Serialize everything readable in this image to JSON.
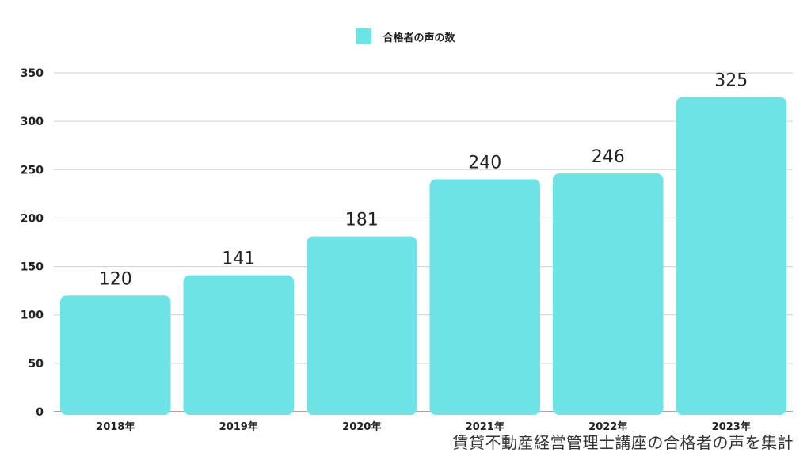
{
  "chart_data": {
    "type": "bar",
    "categories": [
      "2018年",
      "2019年",
      "2020年",
      "2021年",
      "2022年",
      "2023年"
    ],
    "series": [
      {
        "name": "合格者の声の数",
        "values": [
          120,
          141,
          181,
          240,
          246,
          325
        ]
      }
    ],
    "data_labels": [
      "120",
      "141",
      "181",
      "240",
      "246",
      "325"
    ],
    "ylim": [
      0,
      350
    ],
    "yticks": [
      0,
      50,
      100,
      150,
      200,
      250,
      300,
      350
    ],
    "grid": true,
    "legend": "top-center",
    "bar_color": "#6de3e6"
  },
  "caption": "賃貸不動産経営管理士講座の合格者の声を集計"
}
